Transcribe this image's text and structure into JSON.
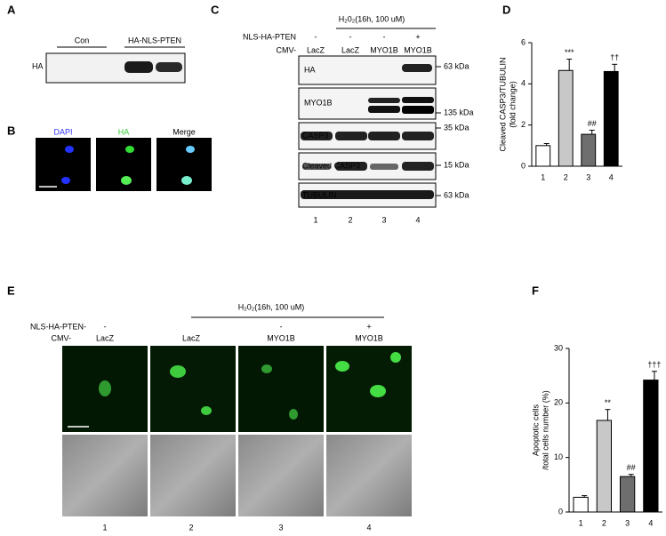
{
  "panel_a": {
    "label": "A",
    "lanes": [
      "Con",
      "HA-NLS-PTEN"
    ],
    "row": "HA"
  },
  "panel_b": {
    "label": "B",
    "channels": [
      "DAPI",
      "HA",
      "Merge"
    ]
  },
  "panel_c": {
    "label": "C",
    "treatment": "H₂0₂(16h, 100 uM)",
    "factor1": "NLS-HA-PTEN",
    "factor1_signs": [
      "-",
      "-",
      "-",
      "+"
    ],
    "factor2": "CMV-",
    "factor2_values": [
      "LacZ",
      "LacZ",
      "MYO1B",
      "MYO1B"
    ],
    "blots": [
      {
        "name": "HA",
        "size": "63 kDa"
      },
      {
        "name": "MYO1B",
        "size": "135 kDa"
      },
      {
        "name": "CASP3",
        "size": "35 kDa"
      },
      {
        "name": "Cleaved CASP3",
        "size": "15 kDa"
      },
      {
        "name": "TUBULIN",
        "size": "63 kDa"
      }
    ],
    "lanes": [
      "1",
      "2",
      "3",
      "4"
    ]
  },
  "panel_d": {
    "label": "D"
  },
  "panel_e": {
    "label": "E",
    "treatment": "H₂0₂(16h, 100 uM)",
    "factor1": "NLS-HA-PTEN-",
    "factor1_signs": [
      "-",
      null,
      "-",
      "+"
    ],
    "factor2": "CMV-",
    "factor2_values": [
      "LacZ",
      "LacZ",
      "MYO1B",
      "MYO1B"
    ],
    "lanes": [
      "1",
      "2",
      "3",
      "4"
    ]
  },
  "panel_f": {
    "label": "F"
  },
  "chart_data": [
    {
      "type": "bar",
      "ylabel": [
        "Cleaved CASP3/TUBULIN",
        "(fold change)"
      ],
      "categories": [
        "1",
        "2",
        "3",
        "4"
      ],
      "values": [
        1.0,
        4.65,
        1.55,
        4.6
      ],
      "errors": [
        0.1,
        0.55,
        0.2,
        0.35
      ],
      "annotations": [
        null,
        "***",
        "##",
        "††"
      ],
      "colors": [
        "#ffffff",
        "#c8c8c8",
        "#6e6e6e",
        "#000000"
      ],
      "ylim": [
        0,
        6
      ],
      "yticks": [
        0,
        2,
        4,
        6
      ]
    },
    {
      "type": "bar",
      "ylabel": [
        "Apoptotic cells",
        "/total cells number (%)"
      ],
      "categories": [
        "1",
        "2",
        "3",
        "4"
      ],
      "values": [
        2.7,
        16.8,
        6.5,
        24.2
      ],
      "errors": [
        0.3,
        2.0,
        0.4,
        1.6
      ],
      "annotations": [
        null,
        "**",
        "##",
        "†††"
      ],
      "colors": [
        "#ffffff",
        "#c8c8c8",
        "#6e6e6e",
        "#000000"
      ],
      "ylim": [
        0,
        30
      ],
      "yticks": [
        0,
        10,
        20,
        30
      ]
    }
  ]
}
